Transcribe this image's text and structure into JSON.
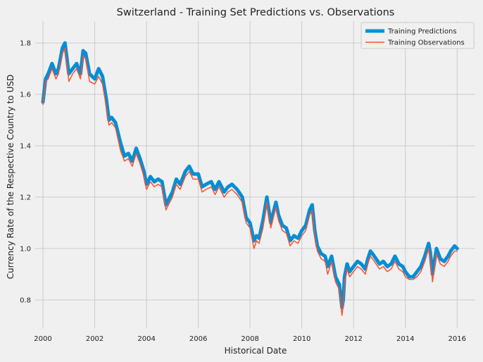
{
  "chart_data": {
    "type": "line",
    "title": "Switzerland - Training Set Predictions vs. Observations",
    "xlabel": "Historical Date",
    "ylabel": "Currency Rate of the Respective Country to USD",
    "xlim": [
      1999.7,
      2016.7
    ],
    "ylim": [
      0.69,
      1.885
    ],
    "x_ticks": [
      2000,
      2002,
      2004,
      2006,
      2008,
      2010,
      2012,
      2014,
      2016
    ],
    "x_tick_labels": [
      "2000",
      "2002",
      "2004",
      "2006",
      "2008",
      "2010",
      "2012",
      "2014",
      "2016"
    ],
    "y_ticks": [
      0.8,
      1.0,
      1.2,
      1.4,
      1.6,
      1.8
    ],
    "y_tick_labels": [
      "0.8",
      "1.0",
      "1.2",
      "1.4",
      "1.6",
      "1.8"
    ],
    "grid": true,
    "legend_position": "top-right",
    "x": [
      2000.0,
      2000.1,
      2000.2,
      2000.35,
      2000.5,
      2000.6,
      2000.75,
      2000.85,
      2001.0,
      2001.15,
      2001.3,
      2001.45,
      2001.55,
      2001.65,
      2001.8,
      2002.0,
      2002.15,
      2002.3,
      2002.45,
      2002.55,
      2002.65,
      2002.8,
      2003.0,
      2003.15,
      2003.3,
      2003.45,
      2003.6,
      2003.75,
      2003.9,
      2004.0,
      2004.15,
      2004.3,
      2004.45,
      2004.6,
      2004.75,
      2004.9,
      2005.0,
      2005.15,
      2005.3,
      2005.5,
      2005.65,
      2005.8,
      2006.0,
      2006.15,
      2006.3,
      2006.5,
      2006.65,
      2006.8,
      2007.0,
      2007.15,
      2007.3,
      2007.5,
      2007.7,
      2007.85,
      2008.0,
      2008.15,
      2008.25,
      2008.35,
      2008.5,
      2008.65,
      2008.8,
      2008.9,
      2009.0,
      2009.1,
      2009.25,
      2009.4,
      2009.55,
      2009.7,
      2009.85,
      2010.0,
      2010.15,
      2010.3,
      2010.4,
      2010.5,
      2010.6,
      2010.75,
      2010.9,
      2011.0,
      2011.15,
      2011.3,
      2011.45,
      2011.55,
      2011.6,
      2011.65,
      2011.75,
      2011.85,
      2012.0,
      2012.15,
      2012.3,
      2012.45,
      2012.55,
      2012.65,
      2012.8,
      2013.0,
      2013.15,
      2013.3,
      2013.45,
      2013.6,
      2013.75,
      2013.9,
      2014.0,
      2014.15,
      2014.3,
      2014.45,
      2014.6,
      2014.75,
      2014.9,
      2014.97,
      2015.05,
      2015.2,
      2015.35,
      2015.5,
      2015.65,
      2015.75,
      2015.9,
      2016.0
    ],
    "series": [
      {
        "name": "Training Predictions",
        "color": "#008fd5",
        "values": [
          1.57,
          1.66,
          1.68,
          1.72,
          1.68,
          1.7,
          1.78,
          1.8,
          1.68,
          1.7,
          1.72,
          1.68,
          1.77,
          1.76,
          1.68,
          1.66,
          1.7,
          1.67,
          1.58,
          1.5,
          1.51,
          1.49,
          1.41,
          1.36,
          1.37,
          1.34,
          1.39,
          1.35,
          1.3,
          1.25,
          1.28,
          1.26,
          1.27,
          1.26,
          1.17,
          1.2,
          1.22,
          1.27,
          1.25,
          1.3,
          1.32,
          1.29,
          1.29,
          1.24,
          1.25,
          1.26,
          1.23,
          1.26,
          1.22,
          1.24,
          1.25,
          1.23,
          1.2,
          1.12,
          1.1,
          1.03,
          1.05,
          1.04,
          1.11,
          1.2,
          1.1,
          1.14,
          1.18,
          1.13,
          1.09,
          1.08,
          1.03,
          1.05,
          1.04,
          1.07,
          1.09,
          1.15,
          1.17,
          1.07,
          1.01,
          0.98,
          0.97,
          0.93,
          0.97,
          0.89,
          0.86,
          0.77,
          0.8,
          0.89,
          0.94,
          0.91,
          0.93,
          0.95,
          0.94,
          0.92,
          0.96,
          0.99,
          0.97,
          0.94,
          0.95,
          0.93,
          0.94,
          0.97,
          0.94,
          0.93,
          0.91,
          0.89,
          0.89,
          0.91,
          0.93,
          0.97,
          1.02,
          0.98,
          0.9,
          1.0,
          0.96,
          0.95,
          0.97,
          0.99,
          1.01,
          1.0
        ]
      },
      {
        "name": "Training Observations",
        "color": "#fc4f30",
        "values": [
          1.56,
          1.65,
          1.66,
          1.7,
          1.66,
          1.68,
          1.76,
          1.78,
          1.65,
          1.68,
          1.7,
          1.66,
          1.75,
          1.74,
          1.65,
          1.64,
          1.67,
          1.64,
          1.55,
          1.48,
          1.49,
          1.47,
          1.38,
          1.34,
          1.35,
          1.32,
          1.37,
          1.33,
          1.28,
          1.23,
          1.26,
          1.24,
          1.25,
          1.24,
          1.15,
          1.18,
          1.2,
          1.25,
          1.23,
          1.28,
          1.3,
          1.27,
          1.27,
          1.22,
          1.23,
          1.24,
          1.21,
          1.24,
          1.2,
          1.22,
          1.23,
          1.21,
          1.18,
          1.1,
          1.08,
          1.0,
          1.03,
          1.02,
          1.08,
          1.18,
          1.08,
          1.12,
          1.16,
          1.11,
          1.07,
          1.06,
          1.01,
          1.03,
          1.02,
          1.05,
          1.07,
          1.13,
          1.15,
          1.05,
          0.99,
          0.96,
          0.95,
          0.9,
          0.95,
          0.87,
          0.84,
          0.74,
          0.78,
          0.87,
          0.92,
          0.89,
          0.91,
          0.93,
          0.92,
          0.9,
          0.94,
          0.97,
          0.95,
          0.92,
          0.93,
          0.91,
          0.92,
          0.95,
          0.92,
          0.91,
          0.89,
          0.88,
          0.88,
          0.89,
          0.91,
          0.95,
          1.0,
          0.96,
          0.87,
          0.98,
          0.94,
          0.93,
          0.95,
          0.97,
          0.99,
          0.99
        ]
      }
    ]
  }
}
